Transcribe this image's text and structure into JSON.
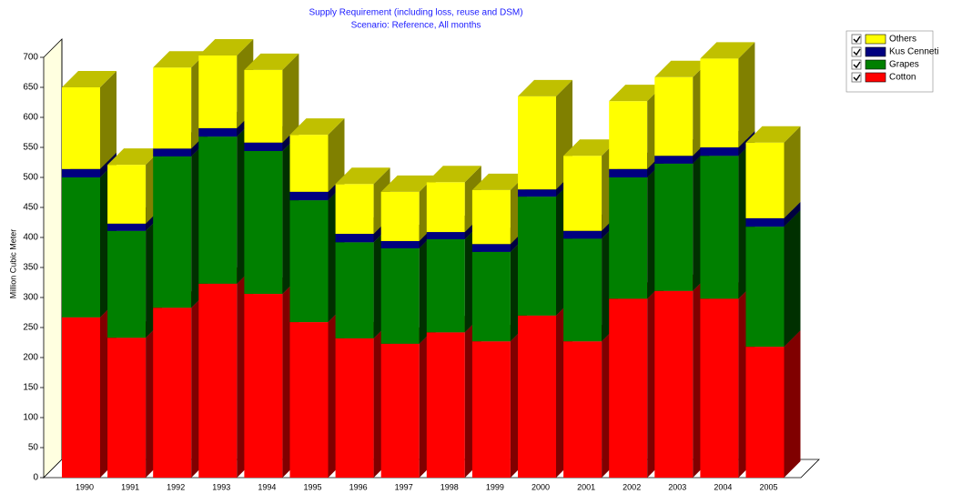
{
  "chart_data": {
    "type": "bar3d_stacked",
    "title": "Supply Requirement (including loss, reuse and DSM)",
    "subtitle": "Scenario: Reference,  All months",
    "y_label": "Million Cubic Meter",
    "categories": [
      "1990",
      "1991",
      "1992",
      "1993",
      "1994",
      "1995",
      "1996",
      "1997",
      "1998",
      "1999",
      "2000",
      "2001",
      "2002",
      "2003",
      "2004",
      "2005"
    ],
    "series": [
      {
        "name": "Cotton",
        "color": "#ff0000",
        "side_color": "#800000",
        "values": [
          267,
          233,
          283,
          323,
          306,
          259,
          232,
          223,
          242,
          227,
          270,
          227,
          298,
          311,
          298,
          218
        ]
      },
      {
        "name": "Grapes",
        "color": "#008000",
        "side_color": "#003000",
        "values": [
          233,
          178,
          252,
          245,
          238,
          203,
          160,
          159,
          155,
          149,
          198,
          171,
          202,
          212,
          238,
          200
        ]
      },
      {
        "name": "Kus Cenneti",
        "color": "#000080",
        "side_color": "#000040",
        "values": [
          14,
          12,
          13,
          14,
          14,
          14,
          14,
          12,
          12,
          13,
          12,
          13,
          14,
          13,
          14,
          14
        ]
      },
      {
        "name": "Others",
        "color": "#ffff00",
        "side_color": "#808000",
        "values": [
          136,
          98,
          135,
          121,
          121,
          95,
          83,
          82,
          83,
          90,
          155,
          125,
          113,
          131,
          148,
          126
        ]
      }
    ],
    "ylim": [
      0,
      700
    ],
    "yticks": [
      0,
      50,
      100,
      150,
      200,
      250,
      300,
      350,
      400,
      450,
      500,
      550,
      600,
      650,
      700
    ]
  }
}
